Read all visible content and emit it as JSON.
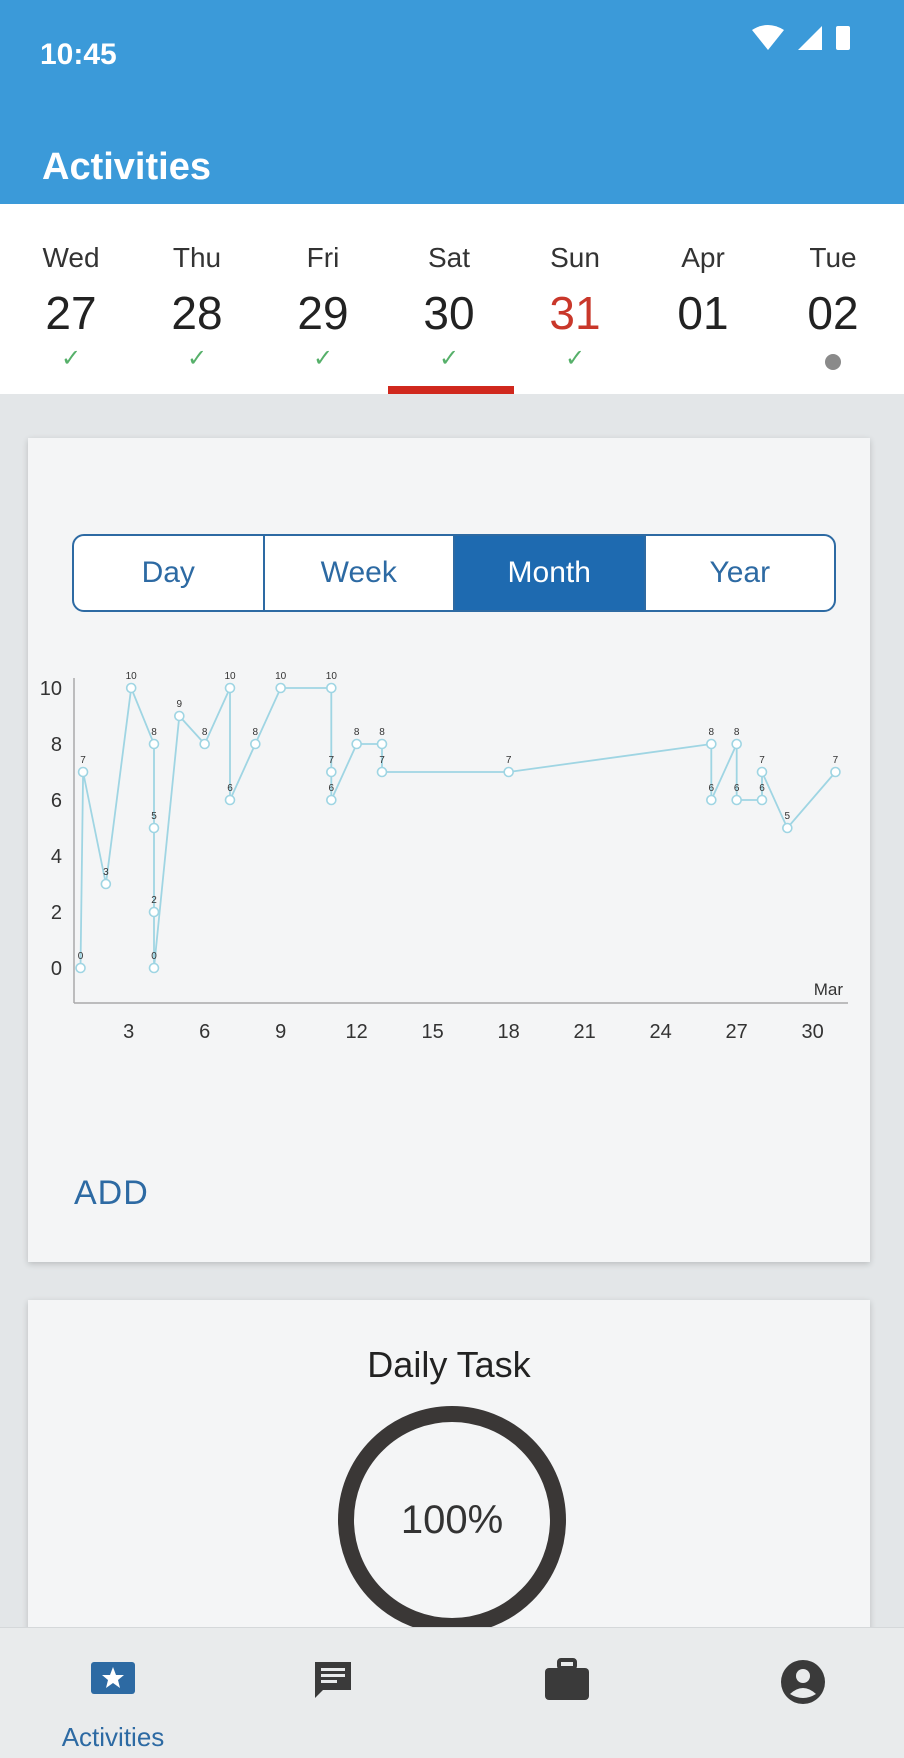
{
  "status_bar": {
    "time": "10:45"
  },
  "app_bar": {
    "title": "Activities"
  },
  "days": [
    {
      "name": "Wed",
      "num": "27",
      "status": "done"
    },
    {
      "name": "Thu",
      "num": "28",
      "status": "done"
    },
    {
      "name": "Fri",
      "num": "29",
      "status": "done"
    },
    {
      "name": "Sat",
      "num": "30",
      "status": "done",
      "selected": true
    },
    {
      "name": "Sun",
      "num": "31",
      "status": "done",
      "highlight": true
    },
    {
      "name": "Apr",
      "num": "01",
      "status": "none"
    },
    {
      "name": "Tue",
      "num": "02",
      "status": "pending"
    }
  ],
  "range_tabs": [
    "Day",
    "Week",
    "Month",
    "Year"
  ],
  "active_tab": "Month",
  "add_label": "ADD",
  "daily_task": {
    "title": "Daily Task",
    "percent_label": "100%",
    "percent": 100
  },
  "bottom_nav": {
    "activities_label": "Activities"
  },
  "colors": {
    "app_bar": "#3b9ad9",
    "accent": "#2d6aa3",
    "selected_underline": "#d0281d",
    "today_text": "#c9372a",
    "check": "#56b06a",
    "line": "#9fd5e3"
  },
  "chart_data": {
    "type": "line",
    "month_label": "Mar",
    "x_ticks": [
      3,
      6,
      9,
      12,
      15,
      18,
      21,
      24,
      27,
      30
    ],
    "y_ticks": [
      0,
      2,
      4,
      6,
      8,
      10
    ],
    "xlim": [
      1,
      31
    ],
    "ylim": [
      0,
      10
    ],
    "series": [
      {
        "points": [
          {
            "x": 1.1,
            "y": 0
          },
          {
            "x": 1.2,
            "y": 7
          },
          {
            "x": 2.1,
            "y": 3
          },
          {
            "x": 3.1,
            "y": 10
          },
          {
            "x": 4.0,
            "y": 8
          },
          {
            "x": 4.0,
            "y": 5
          },
          {
            "x": 4.0,
            "y": 2
          },
          {
            "x": 4.0,
            "y": 0
          },
          {
            "x": 5.0,
            "y": 9
          },
          {
            "x": 6.0,
            "y": 8
          },
          {
            "x": 7.0,
            "y": 10
          },
          {
            "x": 7.0,
            "y": 6
          },
          {
            "x": 8.0,
            "y": 8
          },
          {
            "x": 9.0,
            "y": 10
          },
          {
            "x": 11.0,
            "y": 10
          },
          {
            "x": 11.0,
            "y": 7
          },
          {
            "x": 11.0,
            "y": 6
          },
          {
            "x": 12.0,
            "y": 8
          },
          {
            "x": 13.0,
            "y": 8
          },
          {
            "x": 13.0,
            "y": 7
          },
          {
            "x": 18.0,
            "y": 7
          },
          {
            "x": 26.0,
            "y": 8
          },
          {
            "x": 26.0,
            "y": 6
          },
          {
            "x": 27.0,
            "y": 8
          },
          {
            "x": 27.0,
            "y": 6
          },
          {
            "x": 28.0,
            "y": 6
          },
          {
            "x": 28.0,
            "y": 7
          },
          {
            "x": 29.0,
            "y": 5
          },
          {
            "x": 30.9,
            "y": 7
          }
        ]
      }
    ]
  }
}
